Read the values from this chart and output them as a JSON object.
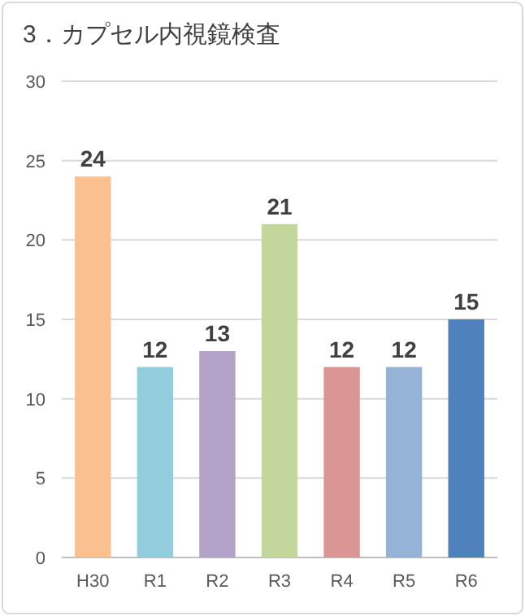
{
  "chart_data": {
    "type": "bar",
    "title": "3．カプセル内視鏡検査",
    "categories": [
      "H30",
      "R1",
      "R2",
      "R3",
      "R4",
      "R5",
      "R6"
    ],
    "values": [
      24,
      12,
      13,
      21,
      12,
      12,
      15
    ],
    "colors": [
      "#fac090",
      "#93cddd",
      "#b3a2c7",
      "#c3d69b",
      "#d99694",
      "#95b3d7",
      "#4f81bd"
    ],
    "ylim": [
      0,
      30
    ],
    "yticks": [
      0,
      5,
      10,
      15,
      20,
      25,
      30
    ],
    "grid": "y",
    "data_labels": true
  }
}
